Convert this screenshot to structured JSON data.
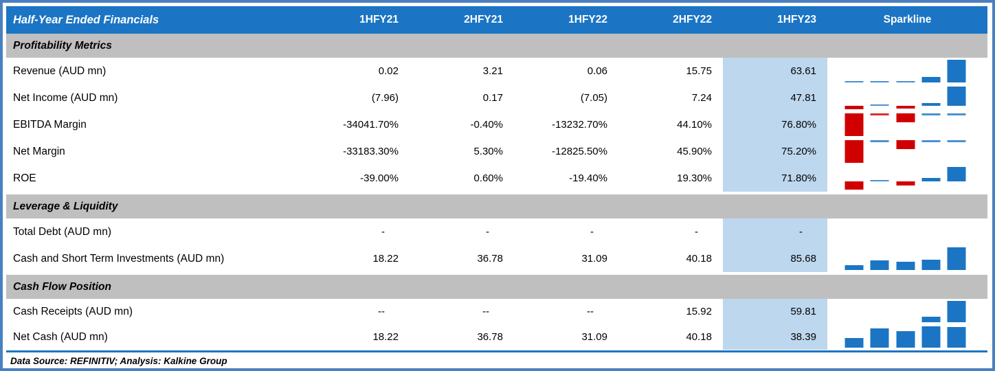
{
  "colors": {
    "frame_border": "#4a7fc1",
    "header_bg": "#1b75c4",
    "header_text": "#ffffff",
    "section_bg": "#bfbfbf",
    "highlight_column_bg": "#bdd7ee",
    "sparkline_positive": "#1b75c4",
    "sparkline_negative": "#d00000",
    "body_text": "#000000"
  },
  "chart_data": {
    "type": "table",
    "title": "Half-Year Ended Financials",
    "columns": [
      "1HFY21",
      "2HFY21",
      "1HFY22",
      "2HFY22",
      "1HFY23"
    ],
    "highlight_column": "1HFY23",
    "sparkline_column": "Sparkline",
    "sparkline_style": "column win/loss mini-chart per row, blue = positive, red = negative",
    "sections": [
      {
        "label": "Profitability Metrics",
        "rows": [
          {
            "label": "Revenue (AUD mn)",
            "display": [
              "0.02",
              "3.21",
              "0.06",
              "15.75",
              "63.61"
            ],
            "values": [
              0.02,
              3.21,
              0.06,
              15.75,
              63.61
            ]
          },
          {
            "label": "Net Income (AUD mn)",
            "display": [
              "(7.96)",
              "0.17",
              "(7.05)",
              "7.24",
              "47.81"
            ],
            "values": [
              -7.96,
              0.17,
              -7.05,
              7.24,
              47.81
            ]
          },
          {
            "label": "EBITDA Margin",
            "display": [
              "-34041.70%",
              "-0.40%",
              "-13232.70%",
              "44.10%",
              "76.80%"
            ],
            "values": [
              -34041.7,
              -0.4,
              -13232.7,
              44.1,
              76.8
            ]
          },
          {
            "label": "Net Margin",
            "display": [
              "-33183.30%",
              "5.30%",
              "-12825.50%",
              "45.90%",
              "75.20%"
            ],
            "values": [
              -33183.3,
              5.3,
              -12825.5,
              45.9,
              75.2
            ]
          },
          {
            "label": "ROE",
            "display": [
              "-39.00%",
              "0.60%",
              "-19.40%",
              "19.30%",
              "71.80%"
            ],
            "values": [
              -39.0,
              0.6,
              -19.4,
              19.3,
              71.8
            ]
          }
        ]
      },
      {
        "label": "Leverage & Liquidity",
        "rows": [
          {
            "label": "Total Debt (AUD mn)",
            "display": [
              "-",
              "-",
              "-",
              "-",
              "-"
            ],
            "values": [
              null,
              null,
              null,
              null,
              null
            ]
          },
          {
            "label": "Cash and Short Term Investments (AUD mn)",
            "display": [
              "18.22",
              "36.78",
              "31.09",
              "40.18",
              "85.68"
            ],
            "values": [
              18.22,
              36.78,
              31.09,
              40.18,
              85.68
            ]
          }
        ]
      },
      {
        "label": "Cash Flow Position",
        "rows": [
          {
            "label": "Cash Receipts (AUD mn)",
            "display": [
              "--",
              "--",
              "--",
              "15.92",
              "59.81"
            ],
            "values": [
              null,
              null,
              null,
              15.92,
              59.81
            ]
          },
          {
            "label": "Net Cash (AUD mn)",
            "display": [
              "18.22",
              "36.78",
              "31.09",
              "40.18",
              "38.39"
            ],
            "values": [
              18.22,
              36.78,
              31.09,
              40.18,
              38.39
            ]
          }
        ]
      }
    ],
    "footer": "Data Source: REFINITIV; Analysis: Kalkine Group"
  }
}
